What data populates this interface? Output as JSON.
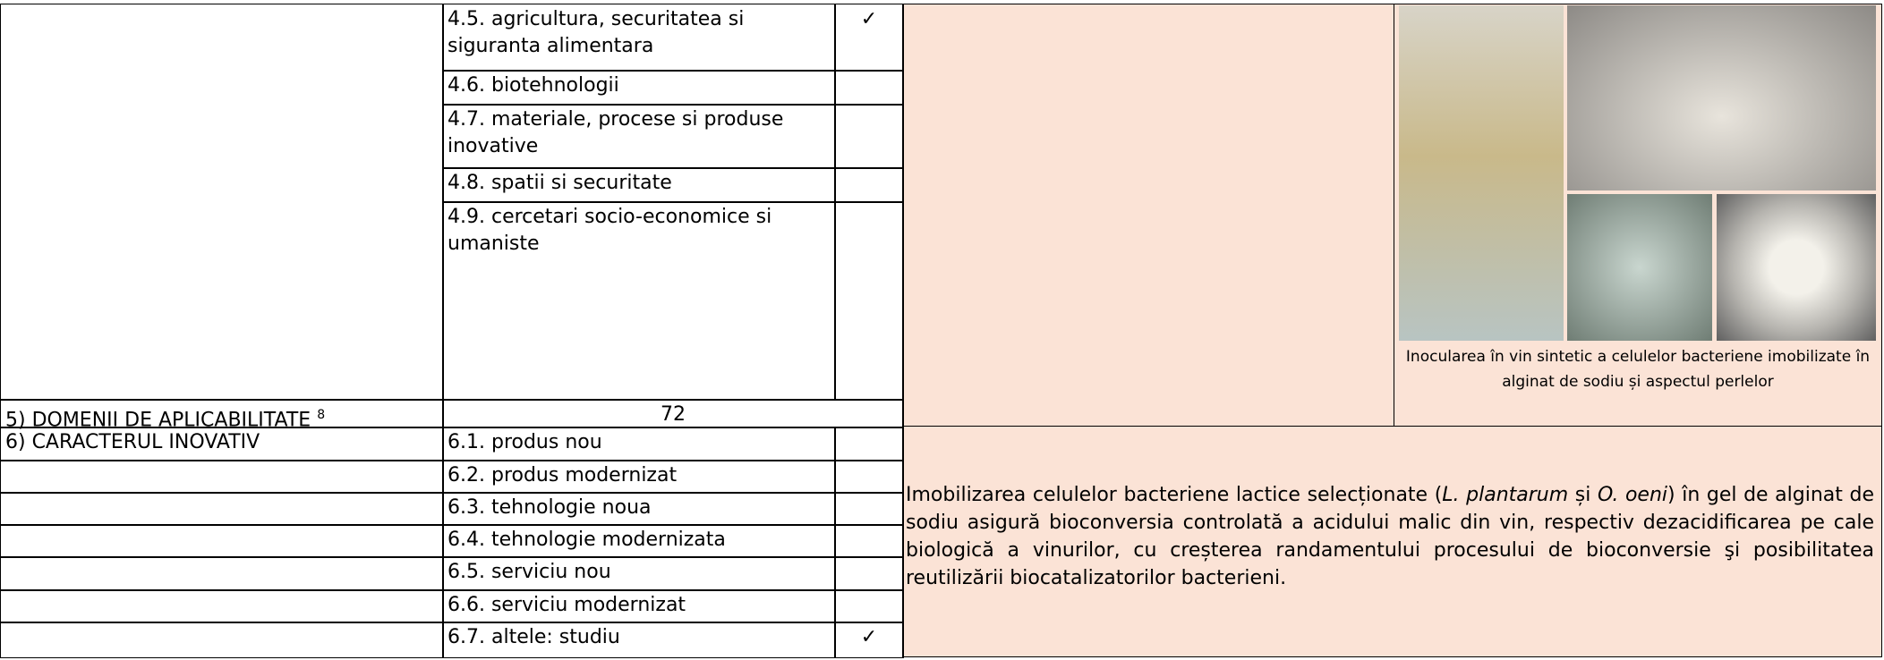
{
  "upper_rows": [
    {
      "label": "4.5. agricultura, securitatea si siguranta alimentara",
      "check": "✓"
    },
    {
      "label": "4.6. biotehnologii"
    },
    {
      "label": "4.7. materiale, procese si produse inovative"
    },
    {
      "label": "4.8. spatii si securitate"
    },
    {
      "label": "4.9. cercetari socio-economice si umaniste"
    }
  ],
  "domains": {
    "label": "5) DOMENII DE APLICABILITATE",
    "footnote": "8",
    "value": 72
  },
  "innovation": {
    "label": "6) CARACTERUL INOVATIV",
    "rows": [
      {
        "label": "6.1. produs nou"
      },
      {
        "label": "6.2. produs modernizat"
      },
      {
        "label": "6.3. tehnologie noua"
      },
      {
        "label": "6.4. tehnologie modernizata"
      },
      {
        "label": "6.5. serviciu nou"
      },
      {
        "label": "6.6. serviciu modernizat"
      },
      {
        "label": "6.7. altele: studiu",
        "check": "✓"
      }
    ]
  },
  "photo_caption": "Inocularea în vin sintetic a celulelor bacteriene imobilizate în alginat de sodiu și aspectul perlelor",
  "description": [
    {
      "text": "Imobilizarea celulelor bacteriene lactice selecționate ("
    },
    {
      "text": "L. plantarum",
      "italic": true
    },
    {
      "text": " și "
    },
    {
      "text": "O. oeni",
      "italic": true
    },
    {
      "text": ") în gel de alginat de sodiu asigură bioconversia controlată a acidului malic din vin, respectiv dezacidificarea pe cale biologică a vinurilor, cu creșterea randamentului procesului de bioconversie şi posibilitatea reutilizării biocatalizatorilor bacterieni."
    }
  ]
}
